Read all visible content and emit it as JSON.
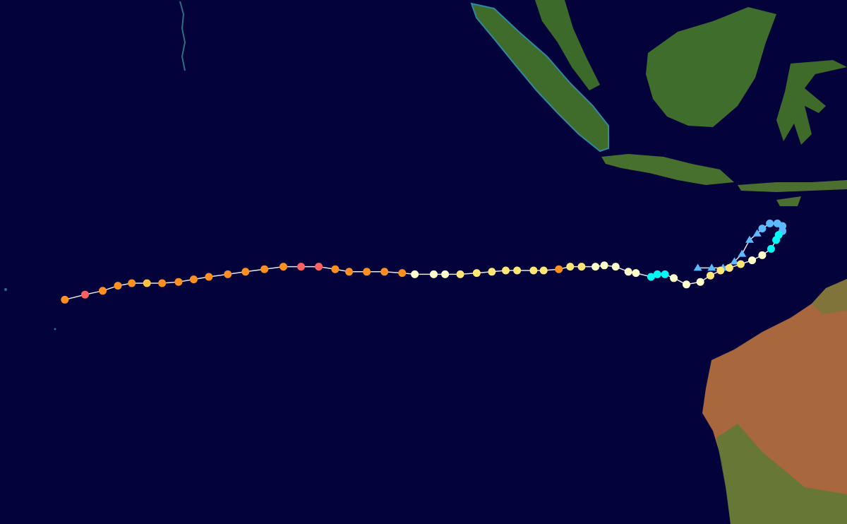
{
  "map": {
    "background_color": "#04023a",
    "land_colors": {
      "tropical_green": "#3d6b2a",
      "arid": "#a8673c",
      "shallow_water": "#1f6f8f"
    }
  },
  "legend_colors": {
    "low": "#5ebaff",
    "td": "#5ebaff",
    "ts": "#00faf4",
    "c1": "#ffffcc",
    "c2": "#ffe775",
    "c3": "#ffc140",
    "c3_orange": "#ff8f20",
    "c4": "#ff6060"
  },
  "track_color": "#e6e6e6",
  "track": [
    {
      "lon": 113.1,
      "lat": -15.2,
      "cat": "low",
      "marker": "triangle"
    },
    {
      "lon": 114.2,
      "lat": -15.2,
      "cat": "low",
      "marker": "triangle"
    },
    {
      "lon": 115.1,
      "lat": -15.2,
      "cat": "low",
      "marker": "triangle"
    },
    {
      "lon": 116.0,
      "lat": -14.7,
      "cat": "low",
      "marker": "triangle"
    },
    {
      "lon": 116.6,
      "lat": -14.1,
      "cat": "low",
      "marker": "triangle"
    },
    {
      "lon": 117.2,
      "lat": -13.0,
      "cat": "low",
      "marker": "triangle"
    },
    {
      "lon": 117.8,
      "lat": -12.5,
      "cat": "low",
      "marker": "triangle"
    },
    {
      "lon": 118.2,
      "lat": -12.1,
      "cat": "td",
      "marker": "circle"
    },
    {
      "lon": 118.8,
      "lat": -11.7,
      "cat": "td",
      "marker": "circle"
    },
    {
      "lon": 119.4,
      "lat": -11.7,
      "cat": "td",
      "marker": "circle"
    },
    {
      "lon": 119.8,
      "lat": -11.9,
      "cat": "td",
      "marker": "circle"
    },
    {
      "lon": 119.8,
      "lat": -12.3,
      "cat": "td",
      "marker": "circle"
    },
    {
      "lon": 119.5,
      "lat": -12.6,
      "cat": "ts",
      "marker": "circle"
    },
    {
      "lon": 119.3,
      "lat": -13.0,
      "cat": "ts",
      "marker": "circle"
    },
    {
      "lon": 118.9,
      "lat": -13.7,
      "cat": "ts",
      "marker": "circle"
    },
    {
      "lon": 118.2,
      "lat": -14.2,
      "cat": "c1",
      "marker": "circle"
    },
    {
      "lon": 117.4,
      "lat": -14.6,
      "cat": "c1",
      "marker": "circle"
    },
    {
      "lon": 116.5,
      "lat": -14.9,
      "cat": "c2",
      "marker": "circle"
    },
    {
      "lon": 115.6,
      "lat": -15.2,
      "cat": "c2",
      "marker": "circle"
    },
    {
      "lon": 114.9,
      "lat": -15.4,
      "cat": "c2",
      "marker": "circle"
    },
    {
      "lon": 114.1,
      "lat": -15.8,
      "cat": "c2",
      "marker": "circle"
    },
    {
      "lon": 113.3,
      "lat": -16.3,
      "cat": "c1",
      "marker": "circle"
    },
    {
      "lon": 112.2,
      "lat": -16.5,
      "cat": "c1",
      "marker": "circle"
    },
    {
      "lon": 111.2,
      "lat": -16.0,
      "cat": "c1",
      "marker": "circle"
    },
    {
      "lon": 110.5,
      "lat": -15.7,
      "cat": "ts",
      "marker": "circle"
    },
    {
      "lon": 109.9,
      "lat": -15.7,
      "cat": "ts",
      "marker": "circle"
    },
    {
      "lon": 109.4,
      "lat": -15.9,
      "cat": "ts",
      "marker": "circle"
    },
    {
      "lon": 108.2,
      "lat": -15.6,
      "cat": "c1",
      "marker": "circle"
    },
    {
      "lon": 107.6,
      "lat": -15.5,
      "cat": "c1",
      "marker": "circle"
    },
    {
      "lon": 106.6,
      "lat": -15.1,
      "cat": "c1",
      "marker": "circle"
    },
    {
      "lon": 105.7,
      "lat": -15.0,
      "cat": "c1",
      "marker": "circle"
    },
    {
      "lon": 105.0,
      "lat": -15.1,
      "cat": "c1",
      "marker": "circle"
    },
    {
      "lon": 103.9,
      "lat": -15.1,
      "cat": "c2",
      "marker": "circle"
    },
    {
      "lon": 103.0,
      "lat": -15.1,
      "cat": "c2",
      "marker": "circle"
    },
    {
      "lon": 102.1,
      "lat": -15.3,
      "cat": "c3_orange",
      "marker": "circle"
    },
    {
      "lon": 100.9,
      "lat": -15.4,
      "cat": "c2",
      "marker": "circle"
    },
    {
      "lon": 100.1,
      "lat": -15.4,
      "cat": "c2",
      "marker": "circle"
    },
    {
      "lon": 98.8,
      "lat": -15.4,
      "cat": "c2",
      "marker": "circle"
    },
    {
      "lon": 97.9,
      "lat": -15.4,
      "cat": "c2",
      "marker": "circle"
    },
    {
      "lon": 96.8,
      "lat": -15.5,
      "cat": "c2",
      "marker": "circle"
    },
    {
      "lon": 95.6,
      "lat": -15.6,
      "cat": "c2",
      "marker": "circle"
    },
    {
      "lon": 94.3,
      "lat": -15.7,
      "cat": "c2",
      "marker": "circle"
    },
    {
      "lon": 93.1,
      "lat": -15.7,
      "cat": "c1",
      "marker": "circle"
    },
    {
      "lon": 92.2,
      "lat": -15.7,
      "cat": "c1",
      "marker": "circle"
    },
    {
      "lon": 90.7,
      "lat": -15.7,
      "cat": "c1",
      "marker": "circle"
    },
    {
      "lon": 89.7,
      "lat": -15.6,
      "cat": "c3_orange",
      "marker": "circle"
    },
    {
      "lon": 88.3,
      "lat": -15.5,
      "cat": "c3_orange",
      "marker": "circle"
    },
    {
      "lon": 86.9,
      "lat": -15.5,
      "cat": "c3_orange",
      "marker": "circle"
    },
    {
      "lon": 85.5,
      "lat": -15.5,
      "cat": "c3_orange",
      "marker": "circle"
    },
    {
      "lon": 84.4,
      "lat": -15.3,
      "cat": "c3_orange",
      "marker": "circle"
    },
    {
      "lon": 83.1,
      "lat": -15.1,
      "cat": "c4",
      "marker": "circle"
    },
    {
      "lon": 81.7,
      "lat": -15.1,
      "cat": "c4",
      "marker": "circle"
    },
    {
      "lon": 80.3,
      "lat": -15.1,
      "cat": "c3_orange",
      "marker": "circle"
    },
    {
      "lon": 78.8,
      "lat": -15.3,
      "cat": "c3_orange",
      "marker": "circle"
    },
    {
      "lon": 77.3,
      "lat": -15.5,
      "cat": "c3_orange",
      "marker": "circle"
    },
    {
      "lon": 75.9,
      "lat": -15.7,
      "cat": "c3_orange",
      "marker": "circle"
    },
    {
      "lon": 74.4,
      "lat": -15.9,
      "cat": "c3_orange",
      "marker": "circle"
    },
    {
      "lon": 73.2,
      "lat": -16.1,
      "cat": "c3_orange",
      "marker": "circle"
    },
    {
      "lon": 72.0,
      "lat": -16.3,
      "cat": "c3_orange",
      "marker": "circle"
    },
    {
      "lon": 70.7,
      "lat": -16.4,
      "cat": "c3_orange",
      "marker": "circle"
    },
    {
      "lon": 69.5,
      "lat": -16.4,
      "cat": "c3",
      "marker": "circle"
    },
    {
      "lon": 68.3,
      "lat": -16.4,
      "cat": "c3_orange",
      "marker": "circle"
    },
    {
      "lon": 67.2,
      "lat": -16.6,
      "cat": "c3_orange",
      "marker": "circle"
    },
    {
      "lon": 66.0,
      "lat": -17.0,
      "cat": "c3_orange",
      "marker": "circle"
    },
    {
      "lon": 64.6,
      "lat": -17.3,
      "cat": "c4",
      "marker": "circle"
    },
    {
      "lon": 63.0,
      "lat": -17.7,
      "cat": "c3_orange",
      "marker": "circle"
    }
  ]
}
